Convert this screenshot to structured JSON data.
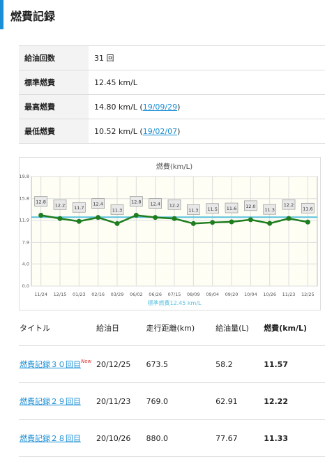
{
  "header": {
    "title": "燃費記録"
  },
  "summary": {
    "rows": [
      {
        "label": "給油回数",
        "value": "31 回"
      },
      {
        "label": "標準燃費",
        "value": "12.45 km/L"
      },
      {
        "label": "最高燃費",
        "value": "14.80 km/L (",
        "link": "19/09/29",
        "after": ")"
      },
      {
        "label": "最低燃費",
        "value": "10.52 km/L (",
        "link": "19/02/07",
        "after": ")"
      }
    ]
  },
  "chart_data": {
    "type": "line",
    "title": "燃費(km/L)",
    "categories": [
      "11/24",
      "12/15",
      "01/23",
      "02/16",
      "03/29",
      "06/02",
      "06/26",
      "07/15",
      "08/09",
      "09/04",
      "09/20",
      "10/04",
      "10/26",
      "11/23",
      "12/25"
    ],
    "series": [
      {
        "name": "燃費",
        "color": "#1e7d1e",
        "values": [
          12.8,
          12.2,
          11.7,
          12.4,
          11.3,
          12.8,
          12.4,
          12.2,
          11.3,
          11.5,
          11.6,
          12.0,
          11.33,
          12.22,
          11.57
        ],
        "value_labels": [
          "12.8",
          "12.2",
          "11.7",
          "12.4",
          "11.3",
          "12.8",
          "12.4",
          "12.2",
          "11.3",
          "11.5",
          "11.6",
          "12.0",
          "11.3",
          "12.2",
          "11.6"
        ]
      }
    ],
    "average": {
      "name": "標準燃費12.45 km/L",
      "value": 12.45,
      "color": "#5bc0de"
    },
    "ylim": [
      0,
      19.8
    ],
    "yticks": [
      {
        "value": 0,
        "label": "0.0"
      },
      {
        "value": 4,
        "label": "4.0"
      },
      7.9,
      11.9,
      15.8,
      19.8
    ],
    "grid": true
  },
  "records": {
    "headers": [
      "タイトル",
      "給油日",
      "走行距離(km)",
      "給油量(L)",
      "燃費(km/L)"
    ],
    "rows": [
      {
        "title": "燃費記録３０回目",
        "badge": "New",
        "date": "20/12/25",
        "distance": "673.5",
        "fuel": "58.2",
        "economy": "11.57"
      },
      {
        "title": "燃費記録２９回目",
        "date": "20/11/23",
        "distance": "769.0",
        "fuel": "62.91",
        "economy": "12.22"
      },
      {
        "title": "燃費記録２８回目",
        "date": "20/10/26",
        "distance": "880.0",
        "fuel": "77.67",
        "economy": "11.33"
      }
    ]
  }
}
